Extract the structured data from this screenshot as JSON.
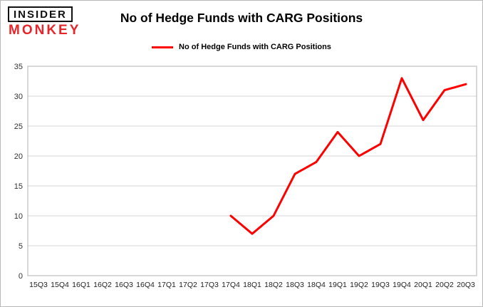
{
  "logo": {
    "line1": "INSIDER",
    "line2": "MONKEY"
  },
  "header": {
    "title": "No of Hedge Funds with CARG Positions"
  },
  "legend": {
    "label": "No of Hedge Funds with CARG Positions"
  },
  "colors": {
    "line_red": "#ff0000",
    "monkey_red": "#e8252a",
    "gridline": "#d6d6d6",
    "plot_border": "#b0b0b0",
    "tick_text": "#333333"
  },
  "chart_data": {
    "type": "line",
    "title": "No of Hedge Funds with CARG Positions",
    "xlabel": "",
    "ylabel": "",
    "ylim": [
      0,
      35
    ],
    "yticks": [
      0,
      5,
      10,
      15,
      20,
      25,
      30,
      35
    ],
    "grid": true,
    "legend_position": "top",
    "categories": [
      "15Q3",
      "15Q4",
      "16Q1",
      "16Q2",
      "16Q3",
      "16Q4",
      "17Q1",
      "17Q2",
      "17Q3",
      "17Q4",
      "18Q1",
      "18Q2",
      "18Q3",
      "18Q4",
      "19Q1",
      "19Q2",
      "19Q3",
      "19Q4",
      "20Q1",
      "20Q2",
      "20Q3"
    ],
    "series": [
      {
        "name": "No of Hedge Funds with CARG Positions",
        "color": "#ff0000",
        "values": [
          null,
          null,
          null,
          null,
          null,
          null,
          null,
          null,
          null,
          10,
          7,
          10,
          17,
          19,
          24,
          20,
          22,
          33,
          26,
          31,
          32
        ]
      }
    ]
  }
}
